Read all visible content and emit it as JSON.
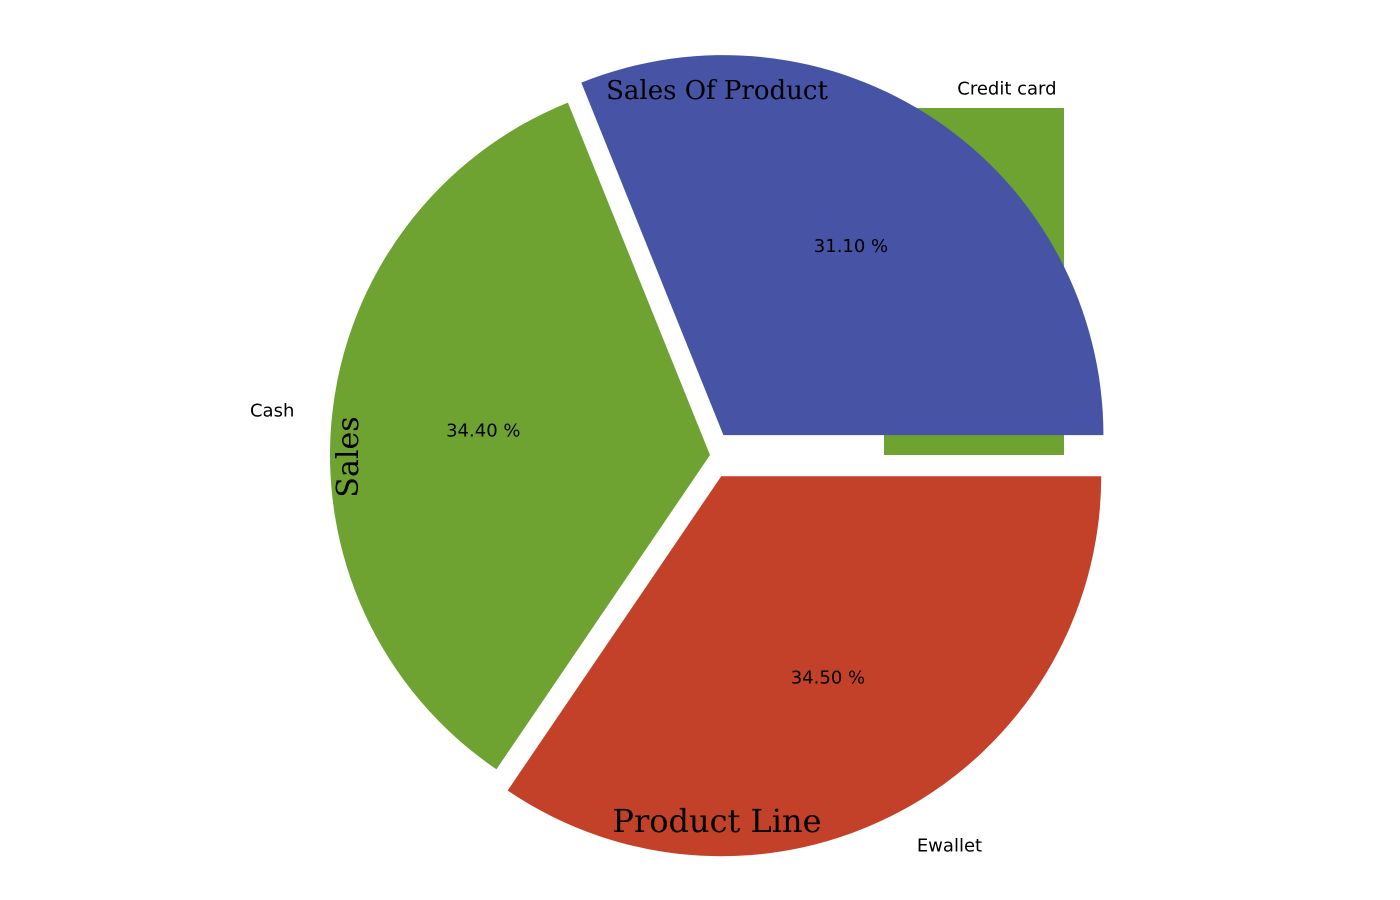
{
  "chart_data": {
    "type": "pie",
    "title": "Sales Of Product",
    "xlabel": "Product Line",
    "ylabel": "Sales",
    "categories": [
      "Credit card",
      "Cash",
      "Ewallet"
    ],
    "values": [
      31.1,
      34.4,
      34.5
    ],
    "percent_labels": [
      "31.10 %",
      "34.40 %",
      "34.50 %"
    ],
    "colors": [
      "#4754a6",
      "#6ea231",
      "#c34128"
    ],
    "legend_swatch_color": "#6ea231",
    "exploded": [
      true,
      false,
      true
    ]
  }
}
